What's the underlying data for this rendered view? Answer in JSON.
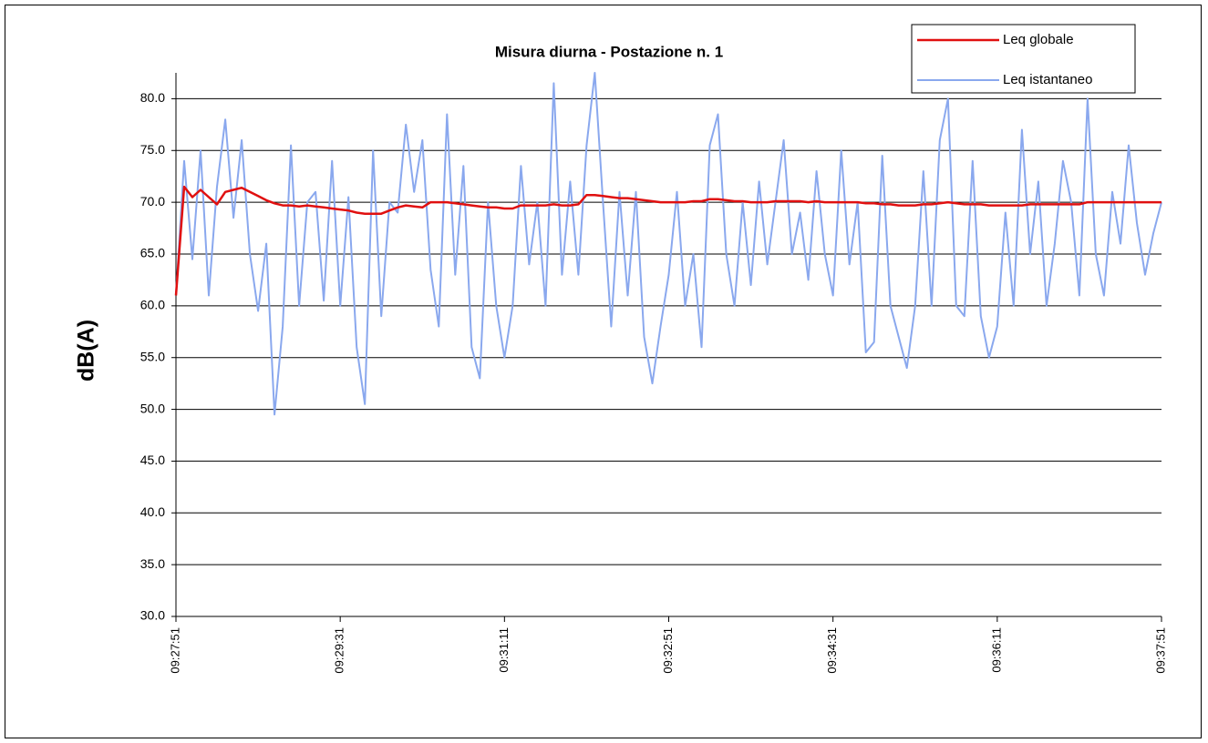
{
  "chart_data": {
    "type": "line",
    "title": "Misura diurna - Postazione n. 1",
    "y_label": "dB(A)",
    "categories": [
      "09:27:51",
      null,
      null,
      null,
      null,
      null,
      null,
      null,
      null,
      null,
      null,
      null,
      null,
      null,
      null,
      null,
      null,
      null,
      null,
      null,
      "09:29:31",
      null,
      null,
      null,
      null,
      null,
      null,
      null,
      null,
      null,
      null,
      null,
      null,
      null,
      null,
      null,
      null,
      null,
      null,
      null,
      "09:31:11",
      null,
      null,
      null,
      null,
      null,
      null,
      null,
      null,
      null,
      null,
      null,
      null,
      null,
      null,
      null,
      null,
      null,
      null,
      null,
      "09:32:51",
      null,
      null,
      null,
      null,
      null,
      null,
      null,
      null,
      null,
      null,
      null,
      null,
      null,
      null,
      null,
      null,
      null,
      null,
      null,
      "09:34:31",
      null,
      null,
      null,
      null,
      null,
      null,
      null,
      null,
      null,
      null,
      null,
      null,
      null,
      null,
      null,
      null,
      null,
      null,
      null,
      "09:36:11",
      null,
      null,
      null,
      null,
      null,
      null,
      null,
      null,
      null,
      null,
      null,
      null,
      null,
      null,
      null,
      null,
      null,
      null,
      null,
      "09:37:51"
    ],
    "series": [
      {
        "name": "Leq globale",
        "color": "#e01010",
        "values": [
          61,
          71.5,
          70.5,
          71.2,
          70.5,
          69.8,
          71,
          71.2,
          71.4,
          71,
          70.6,
          70.2,
          69.9,
          69.7,
          69.7,
          69.6,
          69.7,
          69.6,
          69.5,
          69.4,
          69.3,
          69.2,
          69.0,
          68.9,
          68.9,
          68.9,
          69.2,
          69.5,
          69.7,
          69.6,
          69.5,
          70.0,
          70.0,
          70.0,
          69.9,
          69.8,
          69.7,
          69.6,
          69.5,
          69.5,
          69.4,
          69.4,
          69.7,
          69.7,
          69.7,
          69.7,
          69.8,
          69.7,
          69.7,
          69.8,
          70.7,
          70.7,
          70.6,
          70.5,
          70.4,
          70.4,
          70.3,
          70.2,
          70.1,
          70.0,
          70.0,
          70.0,
          70.0,
          70.1,
          70.1,
          70.3,
          70.3,
          70.2,
          70.1,
          70.1,
          70.0,
          70.0,
          70.0,
          70.1,
          70.1,
          70.1,
          70.1,
          70.0,
          70.1,
          70.0,
          70.0,
          70.0,
          70.0,
          70.0,
          69.9,
          69.9,
          69.8,
          69.8,
          69.7,
          69.7,
          69.7,
          69.8,
          69.8,
          69.9,
          70.0,
          69.9,
          69.8,
          69.8,
          69.8,
          69.7,
          69.7,
          69.7,
          69.7,
          69.7,
          69.8,
          69.8,
          69.8,
          69.8,
          69.8,
          69.8,
          69.8,
          70.0,
          70.0,
          70.0,
          70.0,
          70.0,
          70.0,
          70.0,
          70.0,
          70.0,
          70.0
        ]
      },
      {
        "name": "Leq istantaneo",
        "color": "#8aa8ee",
        "values": [
          61,
          74,
          64.5,
          75,
          61,
          71.5,
          78,
          68.5,
          76,
          65,
          59.5,
          66,
          49.5,
          58,
          75.5,
          60,
          70,
          71,
          60.5,
          74,
          60,
          70.5,
          56,
          50.5,
          75,
          59,
          70,
          69,
          77.5,
          71,
          76,
          63.5,
          58,
          78.5,
          63,
          73.5,
          56,
          53,
          70,
          60,
          55,
          60,
          73.5,
          64,
          70,
          60,
          81.5,
          63,
          72,
          63,
          75.5,
          82.5,
          70,
          58,
          71,
          61,
          71,
          57,
          52.5,
          58,
          63,
          71,
          60,
          65,
          56,
          75.5,
          78.5,
          65,
          60,
          70,
          62,
          72,
          64,
          70,
          76,
          65,
          69,
          62.5,
          73,
          65,
          61,
          75,
          64,
          70,
          55.5,
          56.5,
          74.5,
          60,
          57,
          54,
          60,
          73,
          60,
          76,
          80,
          60,
          59,
          74,
          59,
          55,
          58,
          69,
          60,
          77,
          65,
          72,
          60,
          66,
          74,
          70,
          61,
          80,
          65,
          61,
          71,
          66,
          75.5,
          68,
          63,
          67,
          70
        ]
      }
    ],
    "ylim": [
      30,
      82.5
    ],
    "yticks": [
      {
        "value": 30,
        "label": "30.0"
      },
      {
        "value": 35,
        "label": "35.0"
      },
      {
        "value": 40,
        "label": "40.0"
      },
      {
        "value": 45,
        "label": "45.0"
      },
      {
        "value": 50,
        "label": "50.0"
      },
      {
        "value": 55,
        "label": "55.0"
      },
      {
        "value": 60,
        "label": "60.0"
      },
      {
        "value": 65,
        "label": "65.0"
      },
      {
        "value": 70,
        "label": "70.0"
      },
      {
        "value": 75,
        "label": "75.0"
      },
      {
        "value": 80,
        "label": "80.0"
      }
    ],
    "grid": true,
    "legend": "top-right"
  }
}
